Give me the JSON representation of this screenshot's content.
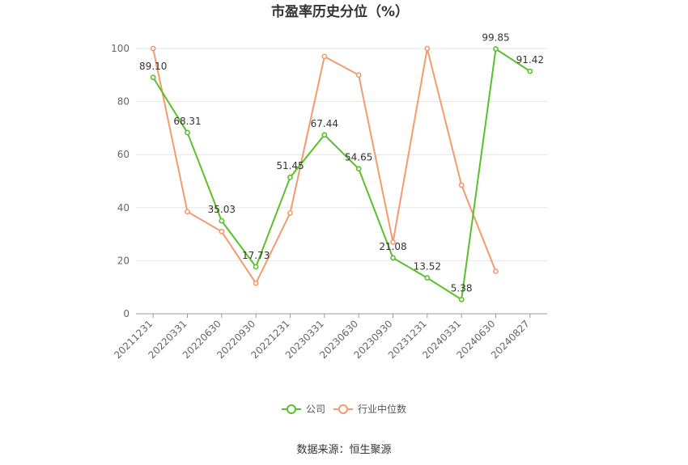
{
  "chart_data": {
    "type": "line",
    "title": "市盈率历史分位（%）",
    "categories": [
      "20211231",
      "20220331",
      "20220630",
      "20220930",
      "20221231",
      "20230331",
      "20230630",
      "20230930",
      "20231231",
      "20240331",
      "20240630",
      "20240827"
    ],
    "ylim": [
      0,
      100
    ],
    "yticks": [
      0,
      20,
      40,
      60,
      80,
      100
    ],
    "grid": true,
    "legend_position": "bottom",
    "series": [
      {
        "name": "公司",
        "color": "#5ac02a",
        "values": [
          89.1,
          68.31,
          35.03,
          17.73,
          51.45,
          67.44,
          54.65,
          21.08,
          13.52,
          5.38,
          99.85,
          91.42
        ],
        "labels": [
          "89.10",
          "68.31",
          "35.03",
          "17.73",
          "51.45",
          "67.44",
          "54.65",
          "21.08",
          "13.52",
          "5.38",
          "99.85",
          "91.42"
        ]
      },
      {
        "name": "行业中位数",
        "color": "#f39a6e",
        "values": [
          100,
          38.5,
          31,
          11.5,
          38,
          97,
          90,
          27,
          100,
          48.5,
          16,
          null
        ]
      }
    ]
  },
  "source": "数据来源：恒生聚源"
}
